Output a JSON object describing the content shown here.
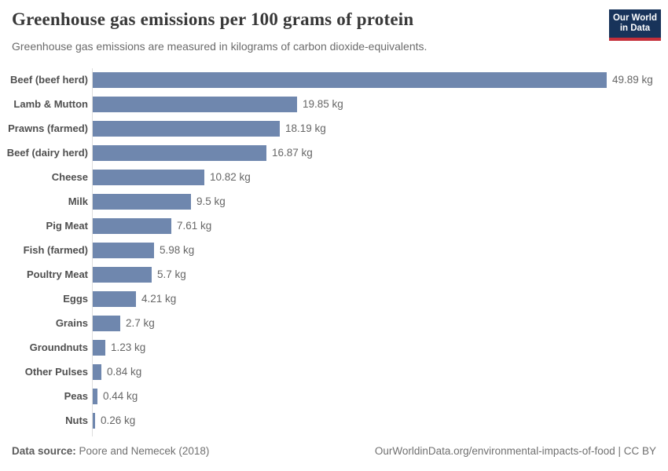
{
  "header": {
    "title": "Greenhouse gas emissions per 100 grams of protein",
    "subtitle": "Greenhouse gas emissions are measured in kilograms of carbon dioxide-equivalents.",
    "logo": {
      "line1": "Our World",
      "line2": "in Data",
      "bg_color": "#18335a",
      "accent_color": "#c52f3a"
    }
  },
  "chart_data": {
    "type": "bar",
    "orientation": "horizontal",
    "title": "Greenhouse gas emissions per 100 grams of protein",
    "subtitle": "Greenhouse gas emissions are measured in kilograms of carbon dioxide-equivalents.",
    "unit": "kg",
    "xlabel": "",
    "ylabel": "",
    "xlim": [
      0,
      49.89
    ],
    "grid": false,
    "legend": false,
    "bar_color": "#6f87ae",
    "categories": [
      "Beef (beef herd)",
      "Lamb & Mutton",
      "Prawns (farmed)",
      "Beef (dairy herd)",
      "Cheese",
      "Milk",
      "Pig Meat",
      "Fish (farmed)",
      "Poultry Meat",
      "Eggs",
      "Grains",
      "Groundnuts",
      "Other Pulses",
      "Peas",
      "Nuts"
    ],
    "values": [
      49.89,
      19.85,
      18.19,
      16.87,
      10.82,
      9.5,
      7.61,
      5.98,
      5.7,
      4.21,
      2.7,
      1.23,
      0.84,
      0.44,
      0.26
    ],
    "value_labels": [
      "49.89 kg",
      "19.85 kg",
      "18.19 kg",
      "16.87 kg",
      "10.82 kg",
      "9.5 kg",
      "7.61 kg",
      "5.98 kg",
      "5.7 kg",
      "4.21 kg",
      "2.7 kg",
      "1.23 kg",
      "0.84 kg",
      "0.44 kg",
      "0.26 kg"
    ]
  },
  "footer": {
    "source_label": "Data source:",
    "source_value": "Poore and Nemecek (2018)",
    "credit": "OurWorldinData.org/environmental-impacts-of-food | CC BY"
  }
}
